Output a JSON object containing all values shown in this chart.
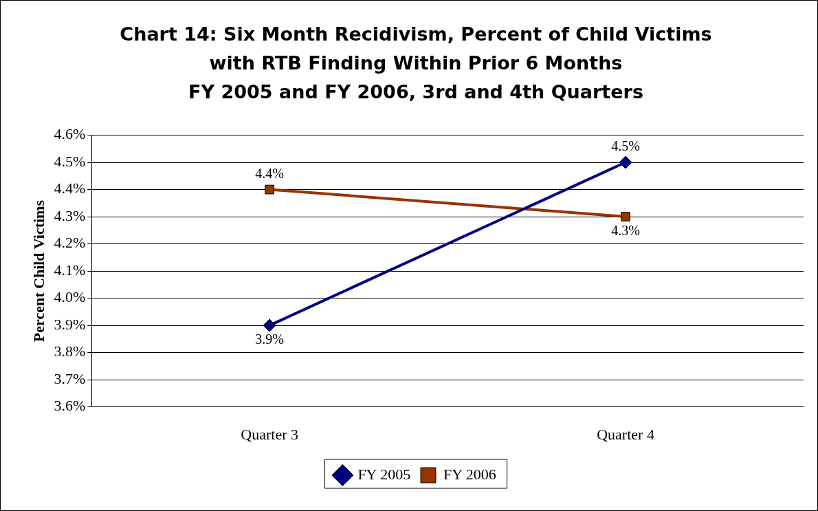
{
  "chart_data": {
    "type": "line",
    "title": "Chart 14: Six Month Recidivism, Percent of Child Victims\nwith RTB Finding Within Prior 6 Months\nFY 2005 and FY 2006, 3rd and 4th Quarters",
    "ylabel": "Percent Child Victims",
    "categories": [
      "Quarter 3",
      "Quarter 4"
    ],
    "series": [
      {
        "name": "FY 2005",
        "color": "#000080",
        "marker": "diamond",
        "values": [
          3.9,
          4.5
        ],
        "value_labels": [
          "3.9%",
          "4.5%"
        ]
      },
      {
        "name": "FY 2006",
        "color": "#993300",
        "marker": "square",
        "values": [
          4.4,
          4.3
        ],
        "value_labels": [
          "4.4%",
          "4.3%"
        ]
      }
    ],
    "ylim": [
      3.6,
      4.6
    ],
    "yticks": [
      {
        "value": 3.6,
        "label": "3.6%"
      },
      {
        "value": 3.7,
        "label": "3.7%"
      },
      {
        "value": 3.8,
        "label": "3.8%"
      },
      {
        "value": 3.9,
        "label": "3.9%"
      },
      {
        "value": 4.0,
        "label": "4.0%"
      },
      {
        "value": 4.1,
        "label": "4.1%"
      },
      {
        "value": 4.2,
        "label": "4.2%"
      },
      {
        "value": 4.3,
        "label": "4.3%"
      },
      {
        "value": 4.4,
        "label": "4.4%"
      },
      {
        "value": 4.5,
        "label": "4.5%"
      },
      {
        "value": 4.6,
        "label": "4.6%"
      }
    ],
    "grid": "y",
    "legend": "bottom",
    "line_style": "solid"
  }
}
